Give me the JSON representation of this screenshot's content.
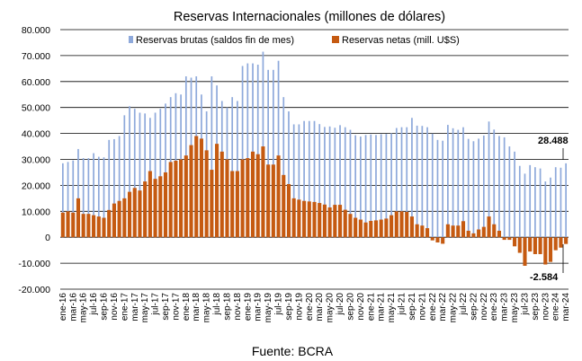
{
  "chart_data": {
    "type": "bar",
    "title": "Reservas Internacionales (millones de dólares)",
    "source": "Fuente: BCRA",
    "ylim": [
      -20000,
      80000
    ],
    "yticks": [
      "-20.000",
      "-10.000",
      "0",
      "10.000",
      "20.000",
      "30.000",
      "40.000",
      "50.000",
      "60.000",
      "70.000",
      "80.000"
    ],
    "ytick_values": [
      -20000,
      -10000,
      0,
      10000,
      20000,
      30000,
      40000,
      50000,
      60000,
      70000,
      80000
    ],
    "grid": true,
    "legend_position": "top",
    "x": [
      "ene-16",
      "feb-16",
      "mar-16",
      "abr-16",
      "may-16",
      "jun-16",
      "jul-16",
      "ago-16",
      "sep-16",
      "oct-16",
      "nov-16",
      "dic-16",
      "ene-17",
      "feb-17",
      "mar-17",
      "abr-17",
      "may-17",
      "jun-17",
      "jul-17",
      "ago-17",
      "sep-17",
      "oct-17",
      "nov-17",
      "dic-17",
      "ene-18",
      "feb-18",
      "mar-18",
      "abr-18",
      "may-18",
      "jun-18",
      "jul-18",
      "ago-18",
      "sep-18",
      "oct-18",
      "nov-18",
      "dic-18",
      "ene-19",
      "feb-19",
      "mar-19",
      "abr-19",
      "may-19",
      "jun-19",
      "jul-19",
      "ago-19",
      "sep-19",
      "oct-19",
      "nov-19",
      "dic-19",
      "ene-20",
      "feb-20",
      "mar-20",
      "abr-20",
      "may-20",
      "jun-20",
      "jul-20",
      "ago-20",
      "sep-20",
      "oct-20",
      "nov-20",
      "dic-20",
      "ene-21",
      "feb-21",
      "mar-21",
      "abr-21",
      "may-21",
      "jun-21",
      "jul-21",
      "ago-21",
      "sep-21",
      "oct-21",
      "nov-21",
      "dic-21",
      "ene-22",
      "feb-22",
      "mar-22",
      "abr-22",
      "may-22",
      "jun-22",
      "jul-22",
      "ago-22",
      "sep-22",
      "oct-22",
      "nov-22",
      "dic-22",
      "ene-23",
      "feb-23",
      "mar-23",
      "abr-23",
      "may-23",
      "jun-23",
      "jul-23",
      "ago-23",
      "sep-23",
      "oct-23",
      "nov-23",
      "dic-23",
      "ene-24",
      "feb-24",
      "mar-24"
    ],
    "x_tick_labels": [
      "ene-16",
      "mar-16",
      "may-16",
      "jul-16",
      "sep-16",
      "nov-16",
      "ene-17",
      "mar-17",
      "may-17",
      "jul-17",
      "sep-17",
      "nov-17",
      "ene-18",
      "mar-18",
      "may-18",
      "jul-18",
      "sep-18",
      "nov-18",
      "ene-19",
      "mar-19",
      "may-19",
      "jul-19",
      "sep-19",
      "nov-19",
      "ene-20",
      "mar-20",
      "may-20",
      "jul-20",
      "sep-20",
      "nov-20",
      "ene-21",
      "mar-21",
      "may-21",
      "jul-21",
      "sep-21",
      "nov-21",
      "ene-22",
      "mar-22",
      "may-22",
      "jul-22",
      "sep-22",
      "nov-22",
      "ene-23",
      "mar-23",
      "may-23",
      "jul-23",
      "sep-23",
      "nov-23",
      "ene-24",
      "mar-24"
    ],
    "series": [
      {
        "name": "Reservas brutas (saldos fin de mes)",
        "color": "#8EA9DB",
        "values": [
          28500,
          29000,
          29600,
          34000,
          30500,
          30500,
          32400,
          31000,
          30800,
          37500,
          37800,
          39000,
          47000,
          50500,
          49500,
          48000,
          47700,
          46000,
          48000,
          49500,
          51500,
          54000,
          55500,
          55000,
          62000,
          61500,
          62000,
          55000,
          48500,
          62000,
          58500,
          52500,
          50000,
          54000,
          52500,
          66000,
          67000,
          67000,
          66500,
          71500,
          64500,
          64500,
          68000,
          54000,
          48500,
          43500,
          43500,
          44800,
          44800,
          44800,
          43600,
          42500,
          42700,
          42200,
          43200,
          42400,
          41400,
          39300,
          38800,
          39400,
          39600,
          39400,
          39700,
          39800,
          40000,
          42100,
          42400,
          42400,
          46000,
          43000,
          42900,
          42400,
          39900,
          37500,
          37200,
          43300,
          42000,
          41400,
          42400,
          37900,
          37000,
          38000,
          39200,
          44600,
          41500,
          39000,
          38500,
          35000,
          33000,
          27500,
          24500,
          27800,
          27000,
          26500,
          21500,
          23000,
          27000,
          26800,
          28488
        ],
        "label_last": "28.488"
      },
      {
        "name": "Reservas netas (mill. U$S)",
        "color": "#C55A11",
        "values": [
          9500,
          10000,
          9500,
          15000,
          9000,
          9000,
          8500,
          8000,
          7500,
          10500,
          13000,
          14000,
          15000,
          17500,
          19000,
          18000,
          21500,
          25500,
          22500,
          23500,
          25000,
          29000,
          29500,
          30000,
          31500,
          35500,
          39000,
          38000,
          33500,
          26000,
          36000,
          33000,
          30000,
          25500,
          25500,
          30000,
          30500,
          33000,
          32000,
          35000,
          28000,
          28000,
          31500,
          24000,
          20500,
          15000,
          14500,
          14000,
          13800,
          13600,
          13200,
          12600,
          11500,
          12500,
          12500,
          10600,
          9000,
          7500,
          6800,
          5700,
          6300,
          6500,
          6800,
          7200,
          8500,
          10000,
          10000,
          9800,
          8000,
          5000,
          4500,
          3500,
          -1200,
          -2000,
          -2500,
          5000,
          4500,
          4500,
          6200,
          2500,
          1500,
          3000,
          4000,
          8000,
          5000,
          2500,
          -1000,
          -1000,
          -3500,
          -6000,
          -11000,
          -5500,
          -6500,
          -6500,
          -10500,
          -9500,
          -5000,
          -4000,
          -2584
        ],
        "label_last": "-2.584"
      }
    ]
  }
}
